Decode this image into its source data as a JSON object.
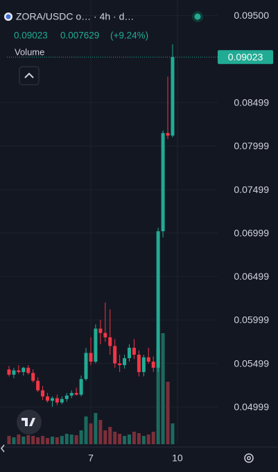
{
  "chart_data": {
    "type": "candlestick",
    "title": "ZORA/USDC o… · 4h · d…",
    "last_price": 0.09023,
    "change": "0.007629",
    "change_pct": "(+9.24%)",
    "volume_label": "Volume",
    "categories": [
      null,
      null,
      null,
      null,
      null,
      null,
      null,
      null,
      null,
      null,
      null,
      null,
      null,
      null,
      null,
      null,
      null,
      "7",
      null,
      null,
      null,
      null,
      null,
      null,
      null,
      null,
      null,
      null,
      null,
      null,
      null,
      null,
      null,
      null,
      null,
      "10"
    ],
    "open": [
      0.0543,
      0.0537,
      0.0542,
      0.054,
      0.0545,
      0.0539,
      0.053,
      0.0519,
      0.0512,
      0.0507,
      0.051,
      0.0505,
      0.0509,
      0.0513,
      0.0516,
      0.0514,
      0.0532,
      0.0562,
      0.0552,
      0.059,
      0.0585,
      0.058,
      0.057,
      0.055,
      0.0548,
      0.0556,
      0.0568,
      0.056,
      0.054,
      0.0557,
      0.0552,
      0.0545,
      0.0702,
      0.0815,
      0.0812,
      null
    ],
    "high": [
      0.0547,
      0.0545,
      0.0548,
      0.0546,
      0.0548,
      0.0543,
      0.0534,
      0.0524,
      0.0516,
      0.0512,
      0.0514,
      0.0512,
      0.0516,
      0.0519,
      0.0522,
      0.0536,
      0.0568,
      0.058,
      0.0595,
      0.06,
      0.062,
      0.0612,
      0.0578,
      0.056,
      0.056,
      0.0572,
      0.0578,
      0.0565,
      0.056,
      0.0568,
      0.0558,
      0.0706,
      0.0818,
      0.088,
      0.0917,
      null
    ],
    "low": [
      0.0535,
      0.0533,
      0.0538,
      0.0536,
      0.0537,
      0.0528,
      0.0517,
      0.0508,
      0.0505,
      0.05,
      0.0502,
      0.0503,
      0.0506,
      0.051,
      0.0513,
      0.0512,
      0.053,
      0.0548,
      0.055,
      0.0572,
      0.0575,
      0.056,
      0.0545,
      0.054,
      0.0544,
      0.0552,
      0.0555,
      0.0535,
      0.0535,
      0.055,
      0.054,
      0.054,
      0.0695,
      0.0808,
      0.081,
      null
    ],
    "close": [
      0.0537,
      0.0542,
      0.054,
      0.0545,
      0.0539,
      0.053,
      0.0519,
      0.0512,
      0.0507,
      0.051,
      0.0505,
      0.0509,
      0.0513,
      0.0516,
      0.0514,
      0.0532,
      0.0562,
      0.0552,
      0.059,
      0.0585,
      0.058,
      0.057,
      0.055,
      0.0548,
      0.0556,
      0.0568,
      0.056,
      0.054,
      0.0557,
      0.0552,
      0.0545,
      0.0702,
      0.0815,
      0.0812,
      0.09023,
      null
    ],
    "volume": [
      12,
      10,
      14,
      11,
      13,
      12,
      10,
      12,
      9,
      11,
      10,
      12,
      15,
      14,
      13,
      20,
      40,
      30,
      45,
      35,
      20,
      25,
      18,
      15,
      12,
      14,
      18,
      16,
      12,
      14,
      18,
      140,
      160,
      90,
      30,
      null
    ],
    "vlim": [
      0,
      180
    ],
    "ylim": [
      0.0457,
      0.0968
    ],
    "yticks": [
      {
        "value": 0.095,
        "label": "0.09500"
      },
      0.08499,
      0.07999,
      0.07499,
      0.06999,
      0.06499,
      0.05999,
      0.05499,
      0.04999
    ],
    "grid": true,
    "up_color": "#22ab94",
    "down_color": "#f23645",
    "volume_up_color": "#1c6b5f",
    "volume_down_color": "#7c2f3a"
  }
}
